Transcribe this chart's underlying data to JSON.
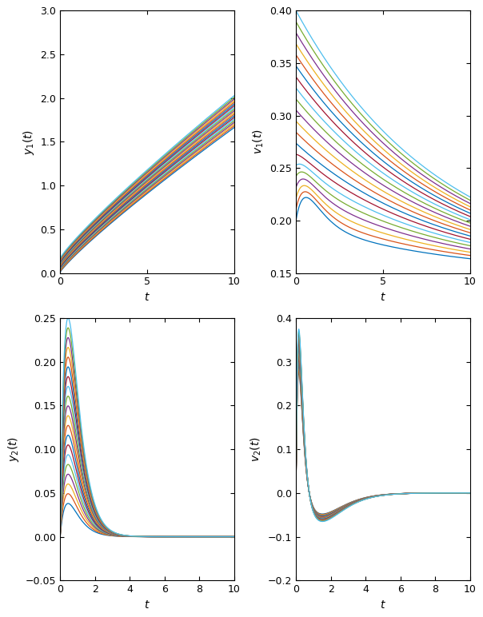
{
  "n_curves": 20,
  "t_end": 10.0,
  "n_points": 1000,
  "subplot_labels": [
    "$y_1(t)$",
    "$v_1(t)$",
    "$y_2(t)$",
    "$v_2(t)$"
  ],
  "xlabels": [
    "$t$",
    "$t$",
    "$t$",
    "$t$"
  ],
  "ylims": [
    [
      0,
      3
    ],
    [
      0.15,
      0.4
    ],
    [
      -0.05,
      0.25
    ],
    [
      -0.2,
      0.4
    ]
  ],
  "yticks_top_left": [
    0,
    0.5,
    1.0,
    1.5,
    2.0,
    2.5,
    3.0
  ],
  "yticks_top_right": [
    0.15,
    0.2,
    0.25,
    0.3,
    0.35,
    0.4
  ],
  "yticks_bot_left": [
    -0.05,
    0.0,
    0.05,
    0.1,
    0.15,
    0.2,
    0.25
  ],
  "yticks_bot_right": [
    -0.2,
    -0.1,
    0.0,
    0.1,
    0.2,
    0.3,
    0.4
  ],
  "xticks_top": [
    0,
    5,
    10
  ],
  "xticks_bot": [
    0,
    2,
    4,
    6,
    8,
    10
  ],
  "background_color": "#ffffff",
  "linewidth": 0.9,
  "matlab_colors": [
    "#0072BD",
    "#D95319",
    "#EDB120",
    "#7E2F8E",
    "#77AC30",
    "#4DBEEE",
    "#A2142F",
    "#0072BD",
    "#D95319",
    "#EDB120",
    "#7E2F8E",
    "#77AC30",
    "#4DBEEE",
    "#A2142F",
    "#0072BD",
    "#D95319",
    "#EDB120",
    "#7E2F8E",
    "#77AC30",
    "#4DBEEE"
  ]
}
